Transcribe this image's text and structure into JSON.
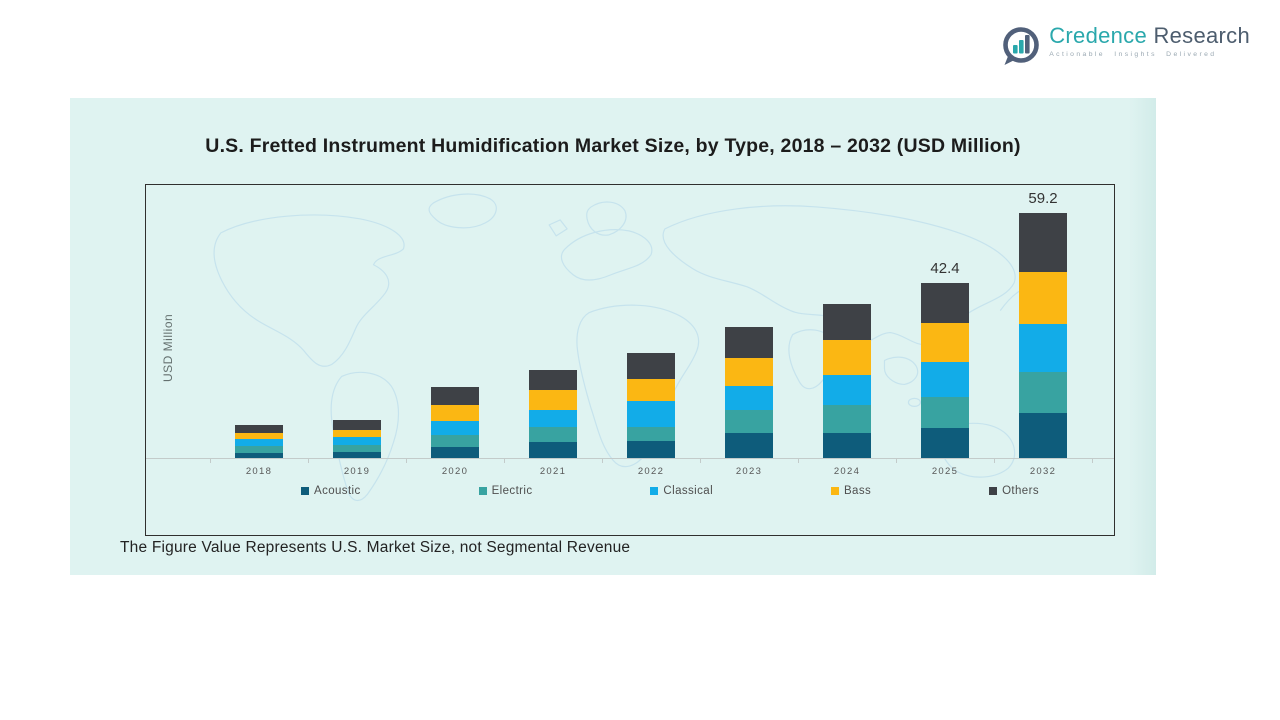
{
  "logo": {
    "brand_primary": "Credence",
    "brand_secondary": "Research",
    "tagline": "Actionable Insights Delivered",
    "icon": "bar-chart-bubble-icon",
    "colors": {
      "teal": "#2AA8AC",
      "slate": "#51607A"
    }
  },
  "footnote": "The Figure Value Represents U.S. Market Size, not Segmental Revenue",
  "chart_data": {
    "type": "bar",
    "stacked": true,
    "title": "U.S. Fretted Instrument Humidification Market Size, by Type, 2018 – 2032 (USD Million)",
    "xlabel": "",
    "ylabel": "USD Million",
    "categories": [
      "2018",
      "2019",
      "2020",
      "2021",
      "2022",
      "2023",
      "2024",
      "2025",
      "2032"
    ],
    "series": [
      {
        "name": "Acoustic",
        "color": "#0E5C7B",
        "values": [
          1.5,
          1.6,
          2.8,
          4.0,
          4.4,
          6.3,
          6.3,
          7.4,
          11.1
        ]
      },
      {
        "name": "Electric",
        "color": "#38A3A1",
        "values": [
          1.6,
          1.8,
          3.0,
          3.6,
          3.4,
          5.6,
          6.6,
          7.6,
          9.9
        ]
      },
      {
        "name": "Classical",
        "color": "#12ACE8",
        "values": [
          1.8,
          1.8,
          3.4,
          4.1,
          6.1,
          5.7,
          7.4,
          8.3,
          11.6
        ]
      },
      {
        "name": "Bass",
        "color": "#FBB713",
        "values": [
          1.4,
          1.7,
          3.8,
          5.0,
          5.3,
          6.7,
          8.3,
          9.4,
          12.5
        ]
      },
      {
        "name": "Others",
        "color": "#3E4146",
        "values": [
          2.0,
          2.6,
          4.3,
          4.8,
          6.3,
          7.5,
          8.7,
          9.7,
          14.1
        ]
      }
    ],
    "data_labels": {
      "2025": "42.4",
      "2032": "59.2"
    },
    "legend_position": "bottom",
    "grid": false,
    "background_watermark": "world-map-outline",
    "theme": {
      "panel_bg": "#DFF3F1",
      "plot_border": "#2F2F2F",
      "axis_line": "#C3CBCA",
      "map_line": "#C6E3ED",
      "tick_label": "#585858",
      "value_label": "#333333",
      "title_color": "#1C1C1C"
    }
  }
}
